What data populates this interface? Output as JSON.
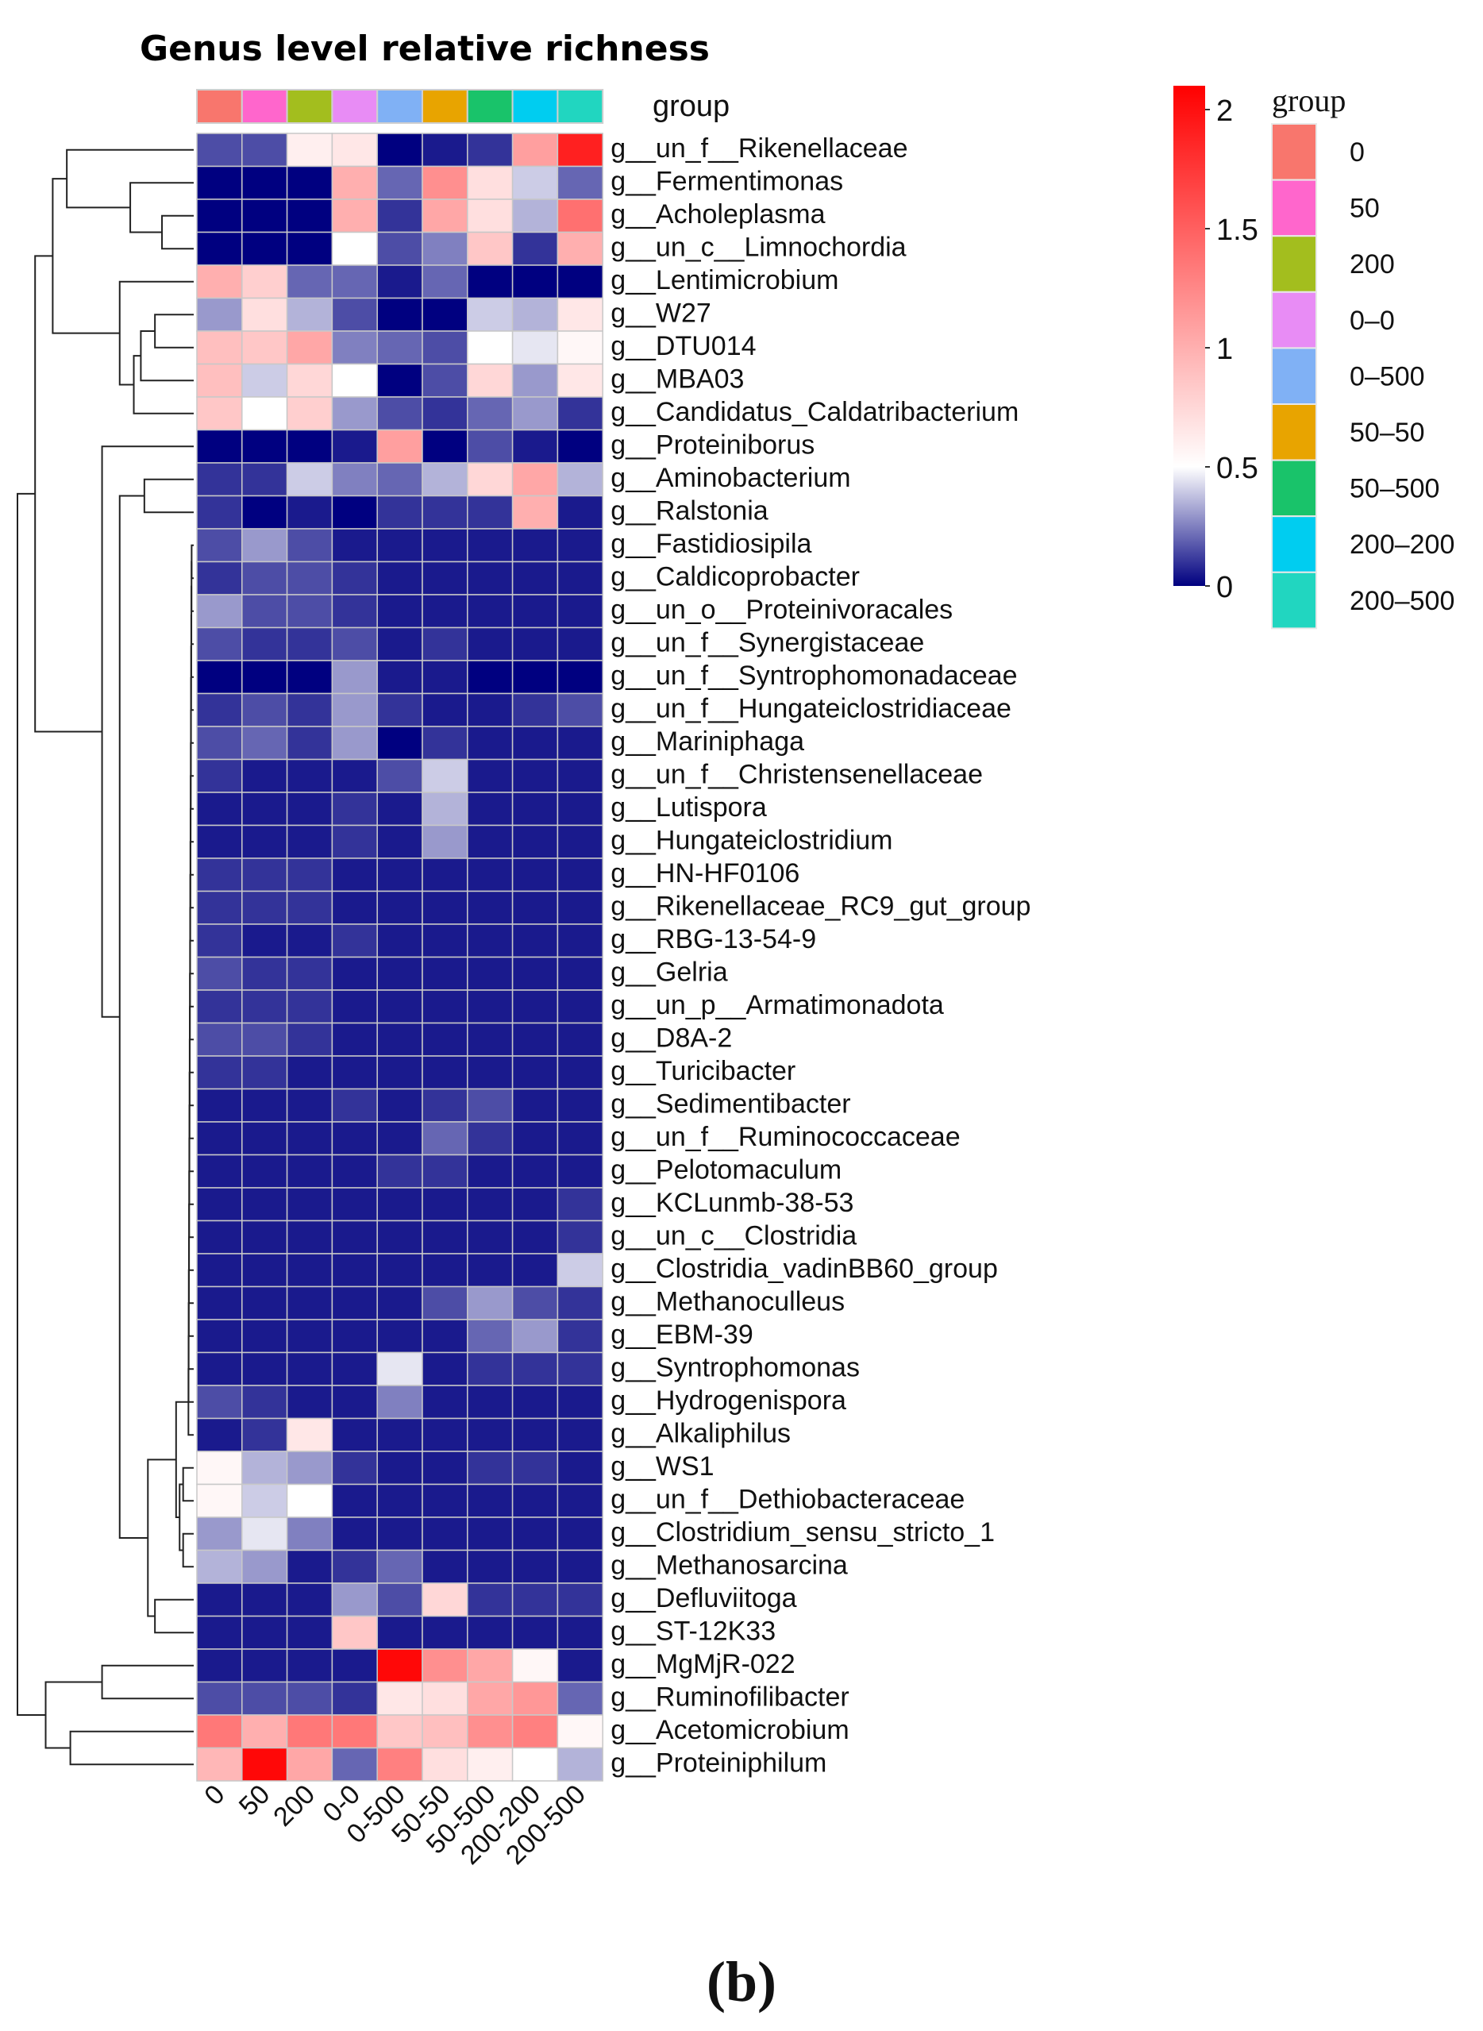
{
  "chart_data": {
    "type": "heatmap",
    "title": "Genus level relative richness",
    "panel_label": "(b)",
    "annotation_label": "group",
    "columns": [
      "0",
      "50",
      "200",
      "0-0",
      "0-500",
      "50-50",
      "50-500",
      "200-200",
      "200-500"
    ],
    "rows": [
      "g__un_f__Rikenellaceae",
      "g__Fermentimonas",
      "g__Acholeplasma",
      "g__un_c__Limnochordia",
      "g__Lentimicrobium",
      "g__W27",
      "g__DTU014",
      "g__MBA03",
      "g__Candidatus_Caldatribacterium",
      "g__Proteiniborus",
      "g__Aminobacterium",
      "g__Ralstonia",
      "g__Fastidiosipila",
      "g__Caldicoprobacter",
      "g__un_o__Proteinivoracales",
      "g__un_f__Synergistaceae",
      "g__un_f__Syntrophomonadaceae",
      "g__un_f__Hungateiclostridiaceae",
      "g__Mariniphaga",
      "g__un_f__Christensenellaceae",
      "g__Lutispora",
      "g__Hungateiclostridium",
      "g__HN-HF0106",
      "g__Rikenellaceae_RC9_gut_group",
      "g__RBG-13-54-9",
      "g__Gelria",
      "g__un_p__Armatimonadota",
      "g__D8A-2",
      "g__Turicibacter",
      "g__Sedimentibacter",
      "g__un_f__Ruminococcaceae",
      "g__Pelotomaculum",
      "g__KCLunmb-38-53",
      "g__un_c__Clostridia",
      "g__Clostridia_vadinBB60_group",
      "g__Methanoculleus",
      "g__EBM-39",
      "g__Syntrophomonas",
      "g__Hydrogenispora",
      "g__Alkaliphilus",
      "g__WS1",
      "g__un_f__Dethiobacteraceae",
      "g__Clostridium_sensu_stricto_1",
      "g__Methanosarcina",
      "g__Defluviitoga",
      "g__ST-12K33",
      "g__MgMjR-022",
      "g__Ruminofilibacter",
      "g__Acetomicrobium",
      "g__Proteiniphilum"
    ],
    "values": [
      [
        0.15,
        0.15,
        0.6,
        0.65,
        0.0,
        0.05,
        0.1,
        1.1,
        1.9
      ],
      [
        0.0,
        0.0,
        0.0,
        1.0,
        0.2,
        1.2,
        0.7,
        0.4,
        0.2
      ],
      [
        0.0,
        0.0,
        0.0,
        1.0,
        0.1,
        1.05,
        0.7,
        0.35,
        1.4
      ],
      [
        0.0,
        0.0,
        0.0,
        0.5,
        0.15,
        0.25,
        0.85,
        0.1,
        1.0
      ],
      [
        1.0,
        0.8,
        0.2,
        0.2,
        0.05,
        0.2,
        0.0,
        0.0,
        0.0
      ],
      [
        0.3,
        0.7,
        0.35,
        0.15,
        0.0,
        0.0,
        0.4,
        0.35,
        0.65
      ],
      [
        0.9,
        0.85,
        1.05,
        0.25,
        0.2,
        0.15,
        0.5,
        0.45,
        0.55
      ],
      [
        0.9,
        0.4,
        0.75,
        0.5,
        0.0,
        0.15,
        0.75,
        0.3,
        0.65
      ],
      [
        0.85,
        0.5,
        0.8,
        0.3,
        0.15,
        0.1,
        0.2,
        0.3,
        0.1
      ],
      [
        0.0,
        0.0,
        0.0,
        0.05,
        1.1,
        0.0,
        0.15,
        0.05,
        0.0
      ],
      [
        0.1,
        0.1,
        0.4,
        0.25,
        0.2,
        0.35,
        0.75,
        1.05,
        0.35
      ],
      [
        0.1,
        0.0,
        0.05,
        0.0,
        0.1,
        0.1,
        0.1,
        1.0,
        0.05
      ],
      [
        0.15,
        0.3,
        0.15,
        0.05,
        0.05,
        0.05,
        0.05,
        0.05,
        0.05
      ],
      [
        0.1,
        0.15,
        0.15,
        0.1,
        0.05,
        0.05,
        0.05,
        0.05,
        0.05
      ],
      [
        0.3,
        0.15,
        0.15,
        0.1,
        0.05,
        0.05,
        0.05,
        0.05,
        0.05
      ],
      [
        0.15,
        0.1,
        0.1,
        0.15,
        0.05,
        0.1,
        0.05,
        0.05,
        0.05
      ],
      [
        0.0,
        0.0,
        0.0,
        0.3,
        0.05,
        0.05,
        0.0,
        0.0,
        0.0
      ],
      [
        0.1,
        0.15,
        0.1,
        0.3,
        0.1,
        0.05,
        0.05,
        0.1,
        0.15
      ],
      [
        0.15,
        0.2,
        0.1,
        0.3,
        0.0,
        0.1,
        0.05,
        0.05,
        0.05
      ],
      [
        0.1,
        0.05,
        0.05,
        0.05,
        0.15,
        0.4,
        0.05,
        0.05,
        0.05
      ],
      [
        0.05,
        0.05,
        0.05,
        0.1,
        0.05,
        0.35,
        0.05,
        0.05,
        0.05
      ],
      [
        0.05,
        0.05,
        0.05,
        0.1,
        0.05,
        0.3,
        0.05,
        0.05,
        0.05
      ],
      [
        0.1,
        0.1,
        0.1,
        0.05,
        0.05,
        0.05,
        0.05,
        0.05,
        0.05
      ],
      [
        0.1,
        0.1,
        0.1,
        0.05,
        0.05,
        0.05,
        0.05,
        0.05,
        0.05
      ],
      [
        0.1,
        0.05,
        0.05,
        0.1,
        0.05,
        0.05,
        0.05,
        0.05,
        0.05
      ],
      [
        0.15,
        0.1,
        0.1,
        0.05,
        0.05,
        0.05,
        0.05,
        0.05,
        0.05
      ],
      [
        0.1,
        0.1,
        0.1,
        0.05,
        0.05,
        0.05,
        0.05,
        0.05,
        0.05
      ],
      [
        0.15,
        0.15,
        0.1,
        0.05,
        0.05,
        0.05,
        0.05,
        0.05,
        0.05
      ],
      [
        0.1,
        0.1,
        0.05,
        0.05,
        0.05,
        0.05,
        0.05,
        0.05,
        0.05
      ],
      [
        0.05,
        0.05,
        0.05,
        0.1,
        0.05,
        0.1,
        0.15,
        0.05,
        0.05
      ],
      [
        0.05,
        0.05,
        0.05,
        0.05,
        0.05,
        0.2,
        0.1,
        0.05,
        0.05
      ],
      [
        0.05,
        0.05,
        0.05,
        0.05,
        0.1,
        0.1,
        0.05,
        0.05,
        0.05
      ],
      [
        0.05,
        0.05,
        0.05,
        0.05,
        0.05,
        0.05,
        0.05,
        0.05,
        0.1
      ],
      [
        0.05,
        0.05,
        0.05,
        0.05,
        0.05,
        0.05,
        0.05,
        0.05,
        0.1
      ],
      [
        0.05,
        0.05,
        0.05,
        0.05,
        0.05,
        0.05,
        0.05,
        0.05,
        0.4
      ],
      [
        0.05,
        0.05,
        0.05,
        0.05,
        0.05,
        0.15,
        0.3,
        0.15,
        0.1
      ],
      [
        0.05,
        0.05,
        0.05,
        0.05,
        0.05,
        0.05,
        0.2,
        0.3,
        0.1
      ],
      [
        0.05,
        0.05,
        0.05,
        0.05,
        0.45,
        0.05,
        0.1,
        0.1,
        0.1
      ],
      [
        0.15,
        0.1,
        0.05,
        0.05,
        0.25,
        0.05,
        0.05,
        0.05,
        0.05
      ],
      [
        0.05,
        0.1,
        0.65,
        0.05,
        0.05,
        0.05,
        0.05,
        0.05,
        0.05
      ],
      [
        0.55,
        0.35,
        0.3,
        0.1,
        0.05,
        0.05,
        0.1,
        0.1,
        0.05
      ],
      [
        0.55,
        0.4,
        0.5,
        0.05,
        0.05,
        0.05,
        0.05,
        0.05,
        0.05
      ],
      [
        0.3,
        0.45,
        0.25,
        0.05,
        0.05,
        0.05,
        0.05,
        0.05,
        0.05
      ],
      [
        0.35,
        0.3,
        0.05,
        0.1,
        0.2,
        0.05,
        0.05,
        0.05,
        0.05
      ],
      [
        0.05,
        0.05,
        0.05,
        0.3,
        0.15,
        0.75,
        0.1,
        0.1,
        0.1
      ],
      [
        0.05,
        0.05,
        0.05,
        0.85,
        0.05,
        0.05,
        0.05,
        0.05,
        0.05
      ],
      [
        0.05,
        0.05,
        0.05,
        0.05,
        2.05,
        1.2,
        1.05,
        0.55,
        0.05
      ],
      [
        0.15,
        0.15,
        0.15,
        0.1,
        0.65,
        0.7,
        1.05,
        1.15,
        0.2
      ],
      [
        1.35,
        1.0,
        1.35,
        1.35,
        0.85,
        0.9,
        1.2,
        1.3,
        0.55
      ],
      [
        0.95,
        2.05,
        1.05,
        0.2,
        1.3,
        0.7,
        0.6,
        0.5,
        0.35
      ]
    ],
    "color_scale": {
      "ticks": [
        0,
        0.5,
        1,
        1.5,
        2
      ],
      "tick_labels": [
        "0",
        "0.5",
        "1",
        "1.5",
        "2"
      ],
      "min": 0,
      "mid": 0.5,
      "max": 2.1,
      "low_color": "#000080",
      "mid_color": "#ffffff",
      "high_color": "#ff0000"
    },
    "legend": {
      "title": "group",
      "entries": [
        "0",
        "50",
        "200",
        "0–0",
        "0–500",
        "50–50",
        "50–500",
        "200–200",
        "200–500"
      ],
      "colors": [
        "#f8766d",
        "#ff66cc",
        "#a3be1e",
        "#e88cf5",
        "#80b1f5",
        "#e8a400",
        "#19c36a",
        "#00cdf0",
        "#21d6c0"
      ]
    },
    "row_dendrogram": "shown on left"
  }
}
